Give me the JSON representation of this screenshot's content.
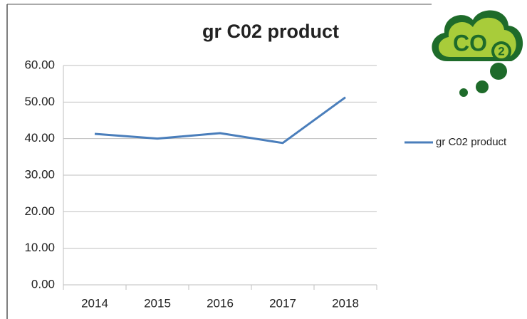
{
  "chart_data": {
    "type": "line",
    "title": "gr C02 product",
    "categories": [
      "2014",
      "2015",
      "2016",
      "2017",
      "2018"
    ],
    "series": [
      {
        "name": "gr C02 product",
        "color": "#4a7ebb",
        "values": [
          41.3,
          40.0,
          41.5,
          38.8,
          51.3
        ]
      }
    ],
    "ylim": [
      0,
      60
    ],
    "yticks": [
      {
        "value": 0,
        "label": "0.00"
      },
      {
        "value": 10,
        "label": "10.00"
      },
      {
        "value": 20,
        "label": "20.00"
      },
      {
        "value": 30,
        "label": "30.00"
      },
      {
        "value": 40,
        "label": "40.00"
      },
      {
        "value": 50,
        "label": "50.00"
      },
      {
        "value": 60,
        "label": "60.00"
      }
    ],
    "grid": true,
    "legend": "right"
  },
  "logo": {
    "text": "CO",
    "subscript": "2"
  }
}
